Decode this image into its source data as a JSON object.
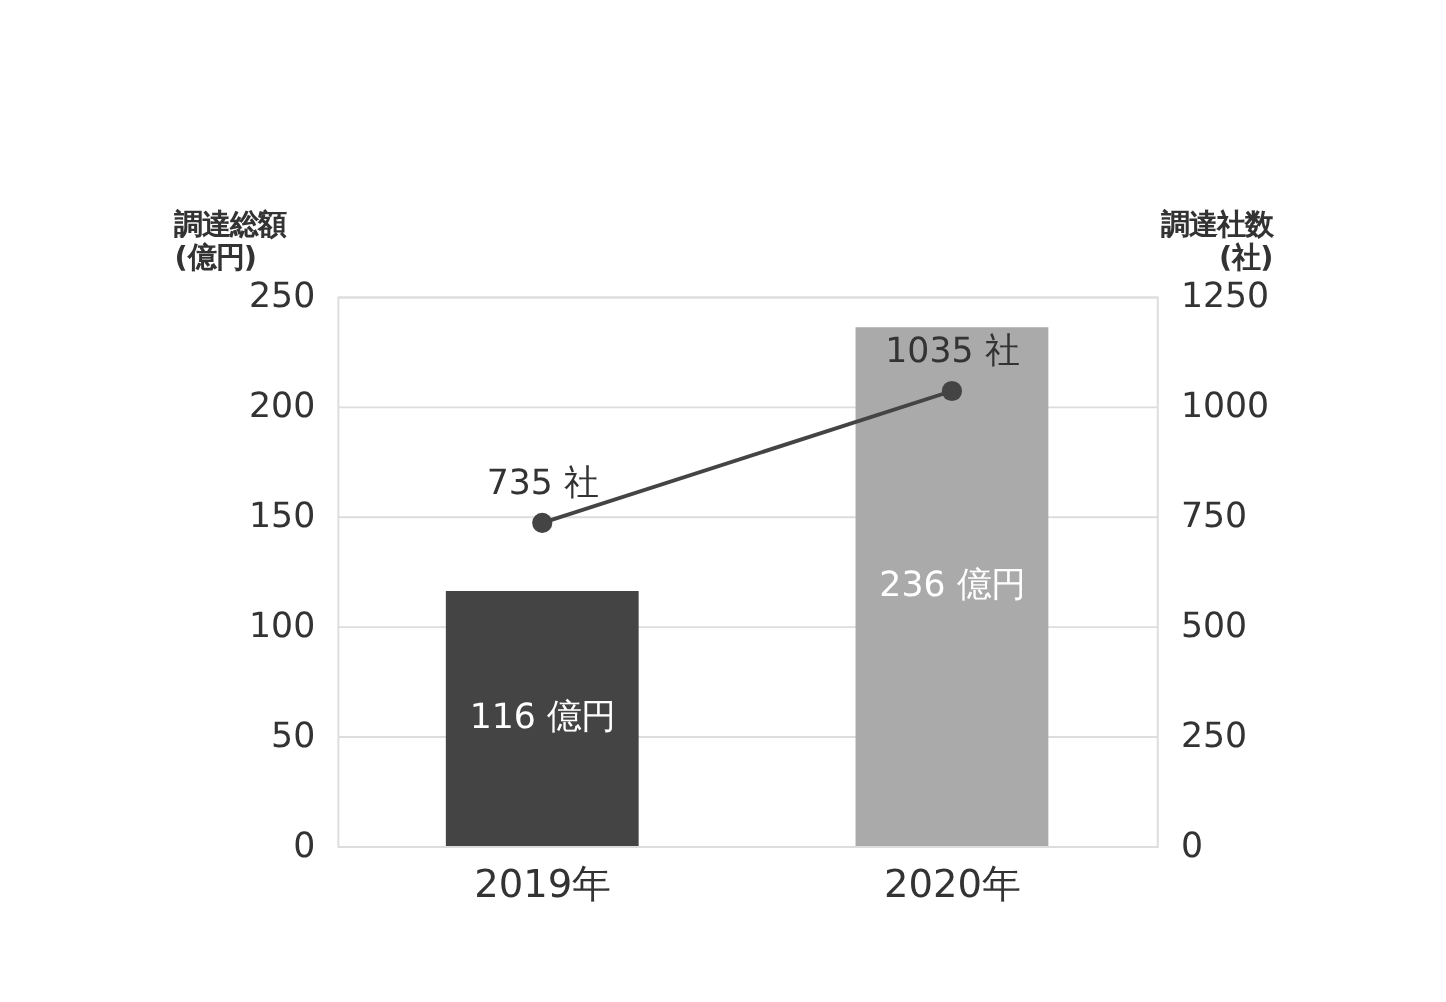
{
  "chart_data": {
    "type": "bar",
    "categories": [
      "2019年",
      "2020年"
    ],
    "ylabel": "調達総額\n(億円)",
    "y2label": "調達社数\n(社)",
    "ylim": [
      0,
      250
    ],
    "yticks": [
      0,
      50,
      100,
      150,
      200,
      250
    ],
    "y2lim": [
      0,
      1250
    ],
    "y2ticks": [
      0,
      250,
      500,
      750,
      1000,
      1250
    ],
    "grid": "y",
    "legend": false,
    "marker": "circle",
    "line_style": "solid",
    "series": [
      {
        "colors": [
          "#444444",
          "#aaaaaa"
        ],
        "values": [
          116,
          236
        ],
        "value_labels": [
          "116 億円",
          "236 億円"
        ]
      },
      {
        "type": "line",
        "axis": "y2",
        "color": "#444444",
        "values": [
          735,
          1035
        ],
        "value_labels": [
          "735 社",
          "1035 社"
        ]
      }
    ]
  }
}
